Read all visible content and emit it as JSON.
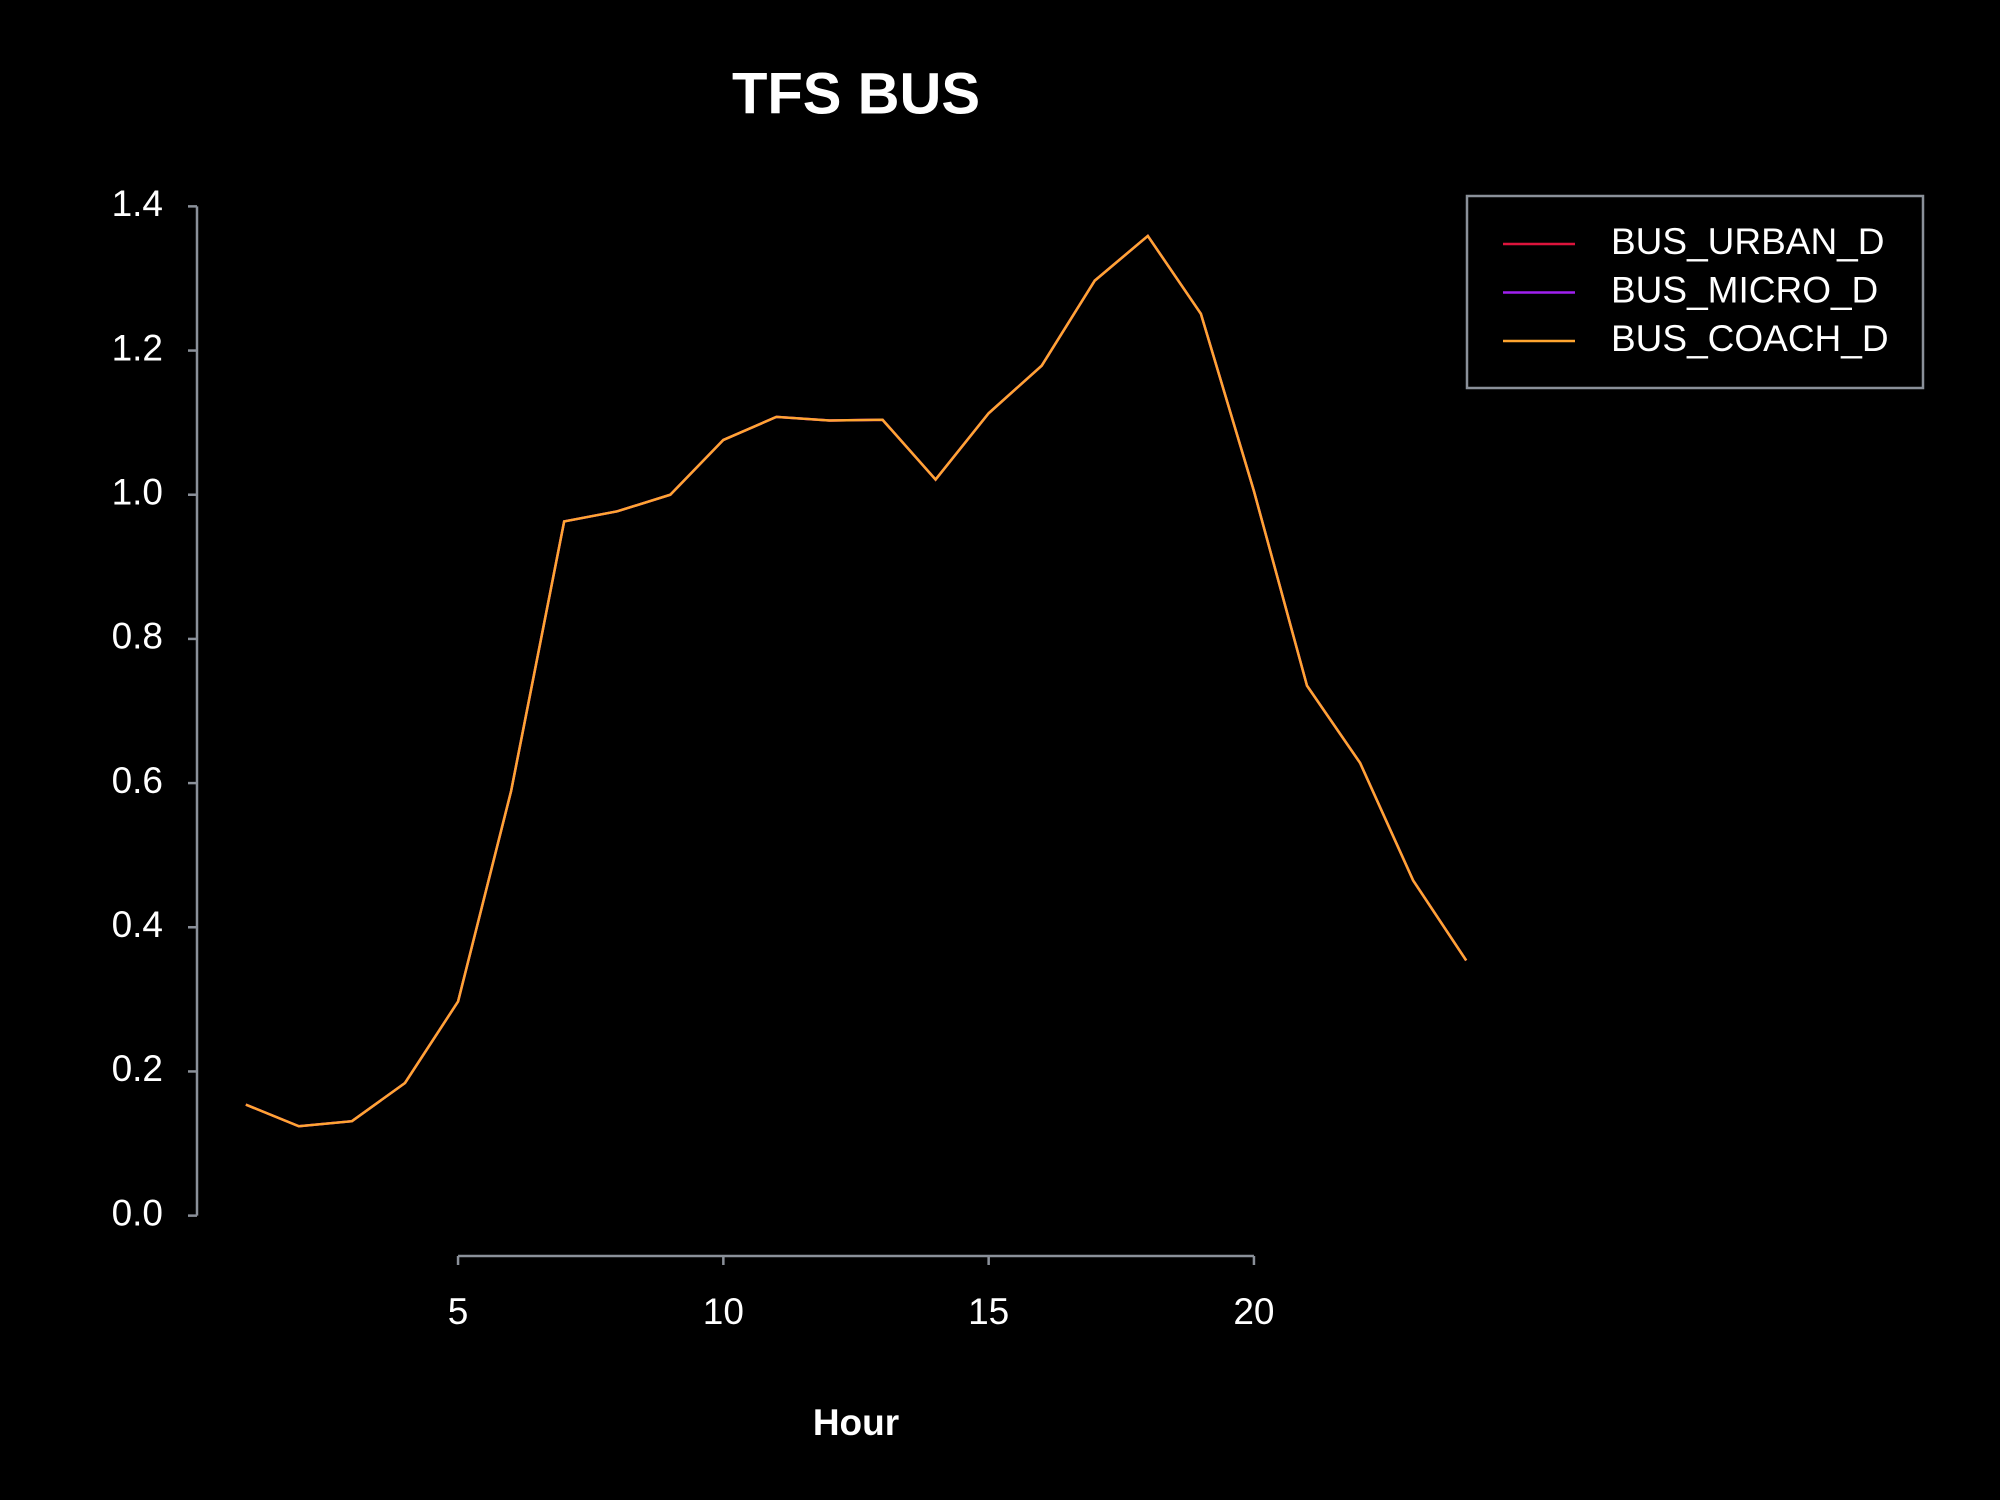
{
  "chart_data": {
    "type": "line",
    "title": "TFS BUS",
    "xlabel": "Hour",
    "x": [
      1,
      2,
      3,
      4,
      5,
      6,
      7,
      8,
      9,
      10,
      11,
      12,
      13,
      14,
      15,
      16,
      17,
      18,
      19,
      20,
      21,
      22,
      23,
      24
    ],
    "series": [
      {
        "name": "BUS_URBAN_D",
        "color": "#dc143c",
        "values": [
          0.154,
          0.124,
          0.131,
          0.184,
          0.297,
          0.589,
          0.963,
          0.977,
          1.0,
          1.076,
          1.108,
          1.103,
          1.104,
          1.021,
          1.113,
          1.179,
          1.297,
          1.359,
          1.251,
          1.005,
          0.735,
          0.628,
          0.465,
          0.354
        ]
      },
      {
        "name": "BUS_MICRO_D",
        "color": "#a020f0",
        "values": [
          0.154,
          0.124,
          0.131,
          0.184,
          0.297,
          0.589,
          0.963,
          0.977,
          1.0,
          1.076,
          1.108,
          1.103,
          1.104,
          1.021,
          1.113,
          1.179,
          1.297,
          1.359,
          1.251,
          1.005,
          0.735,
          0.628,
          0.465,
          0.354
        ]
      },
      {
        "name": "BUS_COACH_D",
        "color": "#ffa530",
        "values": [
          0.154,
          0.124,
          0.131,
          0.184,
          0.297,
          0.589,
          0.963,
          0.977,
          1.0,
          1.076,
          1.108,
          1.103,
          1.104,
          1.021,
          1.113,
          1.179,
          1.297,
          1.359,
          1.251,
          1.005,
          0.735,
          0.628,
          0.465,
          0.354
        ]
      }
    ],
    "xlim": [
      0.08,
      24.92
    ],
    "xticks": [
      5,
      10,
      15,
      20
    ],
    "ylim": [
      -0.056,
      1.456
    ],
    "yticks": [
      {
        "value": 0,
        "label": "0.0"
      },
      0.2,
      0.4,
      0.6,
      0.8,
      {
        "value": 1,
        "label": "1.0"
      },
      1.2,
      1.4
    ],
    "legend": "topright",
    "grid": false
  }
}
